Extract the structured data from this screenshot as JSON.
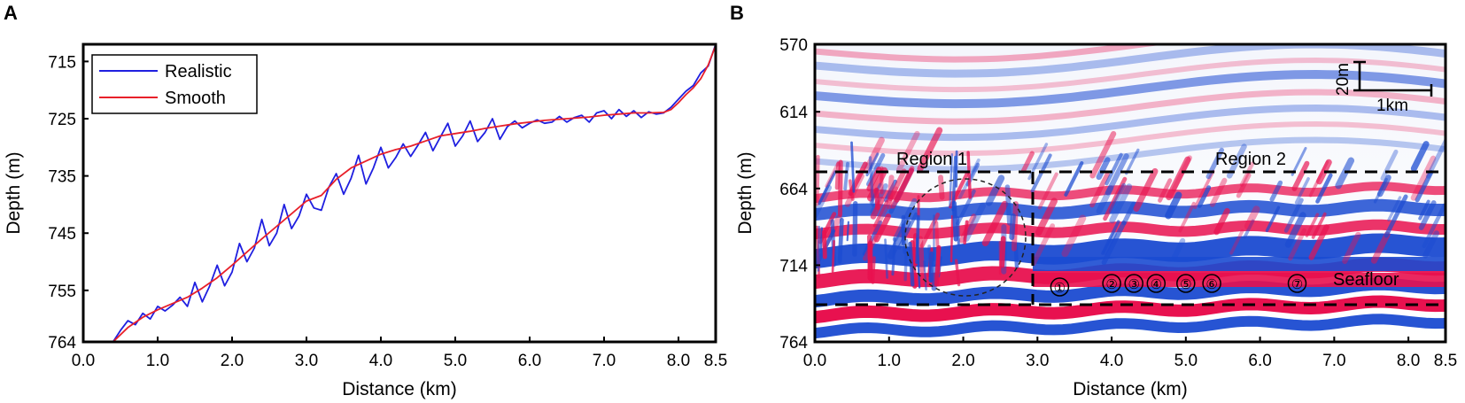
{
  "panels": {
    "a": {
      "letter": "A"
    },
    "b": {
      "letter": "B"
    }
  },
  "chart_data": [
    {
      "type": "line",
      "panel": "A",
      "xlabel": "Distance (km)",
      "ylabel": "Depth (m)",
      "xlim": [
        0,
        8.5
      ],
      "ylim": [
        764,
        712
      ],
      "y_inverted": true,
      "x_ticks": [
        0.0,
        1.0,
        2.0,
        3.0,
        4.0,
        5.0,
        6.0,
        7.0,
        8.0,
        8.5
      ],
      "x_tick_labels": [
        "0.0",
        "1.0",
        "2.0",
        "3.0",
        "4.0",
        "5.0",
        "6.0",
        "7.0",
        "8.0",
        "8.5"
      ],
      "y_ticks": [
        715,
        725,
        735,
        745,
        755,
        764
      ],
      "y_tick_labels": [
        "715",
        "725",
        "735",
        "745",
        "755",
        "764"
      ],
      "legend_position": "top-left",
      "series": [
        {
          "name": "Realistic",
          "color": "#1f1fe0",
          "x": [
            0.4,
            0.5,
            0.6,
            0.7,
            0.8,
            0.9,
            1.0,
            1.1,
            1.2,
            1.3,
            1.4,
            1.5,
            1.6,
            1.7,
            1.8,
            1.9,
            2.0,
            2.1,
            2.2,
            2.3,
            2.4,
            2.5,
            2.6,
            2.7,
            2.8,
            2.9,
            3.0,
            3.1,
            3.2,
            3.3,
            3.4,
            3.5,
            3.6,
            3.7,
            3.8,
            3.9,
            4.0,
            4.1,
            4.2,
            4.3,
            4.4,
            4.5,
            4.6,
            4.7,
            4.8,
            4.9,
            5.0,
            5.1,
            5.2,
            5.3,
            5.4,
            5.5,
            5.6,
            5.7,
            5.8,
            5.9,
            6.0,
            6.1,
            6.2,
            6.3,
            6.4,
            6.5,
            6.6,
            6.7,
            6.8,
            6.9,
            7.0,
            7.1,
            7.2,
            7.3,
            7.4,
            7.5,
            7.6,
            7.7,
            7.8,
            7.9,
            8.0,
            8.1,
            8.2,
            8.3,
            8.4,
            8.5
          ],
          "y": [
            764,
            762.0,
            760.3,
            761.0,
            759.0,
            760.0,
            757.8,
            758.6,
            757.6,
            756.2,
            757.8,
            753.6,
            757.0,
            754.2,
            750.6,
            754.2,
            751.8,
            746.8,
            750.0,
            747.6,
            742.6,
            747.2,
            745.0,
            740.0,
            744.2,
            742.0,
            738.2,
            740.6,
            741.0,
            737.0,
            734.6,
            738.2,
            735.4,
            731.4,
            736.4,
            733.6,
            730.0,
            733.6,
            731.8,
            729.4,
            731.6,
            729.6,
            727.4,
            730.6,
            728.2,
            725.8,
            729.8,
            728.0,
            725.4,
            729.0,
            727.4,
            725.0,
            728.6,
            726.4,
            725.4,
            726.6,
            725.8,
            725.2,
            725.8,
            725.6,
            724.6,
            725.6,
            724.8,
            724.4,
            725.6,
            724.0,
            723.6,
            725.0,
            723.4,
            724.6,
            723.6,
            724.8,
            723.8,
            724.2,
            724.0,
            723.0,
            721.6,
            720.2,
            719.2,
            717.0,
            715.8,
            712.0
          ]
        },
        {
          "name": "Smooth",
          "color": "#e8202a",
          "x": [
            0.4,
            0.6,
            0.8,
            1.0,
            1.2,
            1.4,
            1.6,
            1.8,
            2.0,
            2.2,
            2.4,
            2.6,
            2.8,
            3.0,
            3.2,
            3.4,
            3.6,
            3.8,
            4.0,
            4.2,
            4.4,
            4.6,
            4.8,
            5.0,
            5.2,
            5.4,
            5.6,
            5.8,
            6.0,
            6.2,
            6.4,
            6.6,
            6.8,
            7.0,
            7.2,
            7.4,
            7.6,
            7.8,
            7.9,
            8.0,
            8.1,
            8.2,
            8.3,
            8.4,
            8.5
          ],
          "y": [
            764,
            761.5,
            759.7,
            758.4,
            757.3,
            756.2,
            754.6,
            752.8,
            750.6,
            748.3,
            746.0,
            743.8,
            741.6,
            739.4,
            738.4,
            735.6,
            733.6,
            732.4,
            731.2,
            730.4,
            729.8,
            728.9,
            728.0,
            727.6,
            727.2,
            726.7,
            726.3,
            725.9,
            725.6,
            725.3,
            725.1,
            724.9,
            724.7,
            724.4,
            724.2,
            724.0,
            724.0,
            723.9,
            723.4,
            722.2,
            720.8,
            719.6,
            718.0,
            715.6,
            712.2
          ]
        }
      ]
    },
    {
      "type": "heatmap",
      "panel": "B",
      "description_colormap": "seismic red-white-blue",
      "xlabel": "Distance (km)",
      "ylabel": "Depth (m)",
      "xlim": [
        0,
        8.5
      ],
      "ylim": [
        764,
        570
      ],
      "x_ticks": [
        0.0,
        1.0,
        2.0,
        3.0,
        4.0,
        5.0,
        6.0,
        7.0,
        8.0,
        8.5
      ],
      "x_tick_labels": [
        "0.0",
        "1.0",
        "2.0",
        "3.0",
        "4.0",
        "5.0",
        "6.0",
        "7.0",
        "8.0",
        "8.5"
      ],
      "y_ticks": [
        570,
        614,
        664,
        714,
        764
      ],
      "y_tick_labels": [
        "570",
        "614",
        "664",
        "714",
        "764"
      ],
      "region_labels": [
        "Region 1",
        "Region 2"
      ],
      "seafloor_label": "Seafloor",
      "markers": [
        {
          "label": "①",
          "x": 3.3
        },
        {
          "label": "②",
          "x": 4.0
        },
        {
          "label": "③",
          "x": 4.3
        },
        {
          "label": "④",
          "x": 4.6
        },
        {
          "label": "⑤",
          "x": 5.0
        },
        {
          "label": "⑥",
          "x": 5.35
        },
        {
          "label": "⑦",
          "x": 6.5
        }
      ],
      "scale_bar": {
        "vertical_label": "20m",
        "horizontal_label": "1km"
      }
    }
  ],
  "colors": {
    "red": "#e8114f",
    "blue": "#1b4bd1",
    "axis": "#000000"
  }
}
